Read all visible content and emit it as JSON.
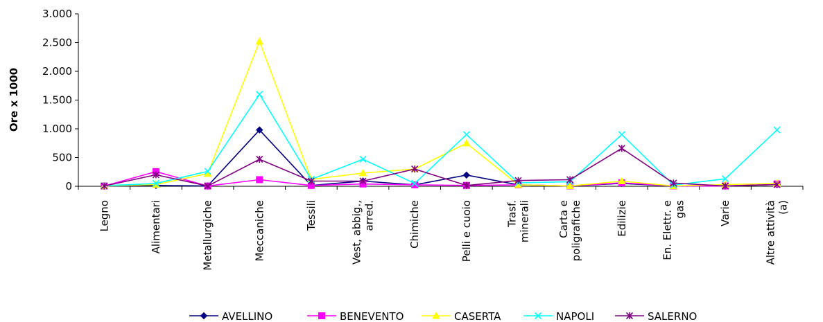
{
  "chart_data": {
    "type": "line",
    "title": "",
    "xlabel": "",
    "ylabel": "Ore x 1000",
    "ylim": [
      0,
      3000
    ],
    "yticks": [
      0,
      500,
      1000,
      1500,
      2000,
      2500,
      3000
    ],
    "ytick_labels": [
      "0",
      "500",
      "1.000",
      "1.500",
      "2.000",
      "2.500",
      "3.000"
    ],
    "grid": false,
    "legend_position": "bottom",
    "categories": [
      [
        "Legno"
      ],
      [
        "Alimentari"
      ],
      [
        "Metallurgiche"
      ],
      [
        "Meccaniche"
      ],
      [
        "Tessili"
      ],
      [
        "Vest, abbig.,",
        "arred."
      ],
      [
        "Chimiche"
      ],
      [
        "Pelli e cuoio"
      ],
      [
        "Trasf.",
        "minerali"
      ],
      [
        "Carta e",
        "poligrafiche"
      ],
      [
        "Edilizie"
      ],
      [
        "En. Elettr. e",
        "gas"
      ],
      [
        "Varie"
      ],
      [
        "Altre attività",
        "(a)"
      ]
    ],
    "series": [
      {
        "name": "AVELLINO",
        "color": "#000080",
        "marker": "diamond",
        "values": [
          5,
          15,
          5,
          980,
          15,
          90,
          25,
          195,
          25,
          5,
          50,
          5,
          5,
          30
        ]
      },
      {
        "name": "BENEVENTO",
        "color": "#FF00FF",
        "marker": "square",
        "values": [
          5,
          255,
          5,
          115,
          15,
          40,
          25,
          15,
          25,
          5,
          60,
          5,
          5,
          40
        ]
      },
      {
        "name": "CASERTA",
        "color": "#FFFF00",
        "marker": "triangle",
        "values": [
          5,
          30,
          220,
          2520,
          120,
          230,
          300,
          750,
          25,
          5,
          90,
          5,
          30,
          50
        ]
      },
      {
        "name": "NAPOLI",
        "color": "#00FFFF",
        "marker": "x",
        "values": [
          10,
          50,
          260,
          1600,
          120,
          470,
          50,
          900,
          60,
          80,
          900,
          20,
          130,
          980
        ]
      },
      {
        "name": "SALERNO",
        "color": "#800080",
        "marker": "star",
        "values": [
          5,
          200,
          5,
          470,
          90,
          90,
          300,
          15,
          100,
          115,
          660,
          55,
          5,
          30
        ]
      }
    ]
  }
}
